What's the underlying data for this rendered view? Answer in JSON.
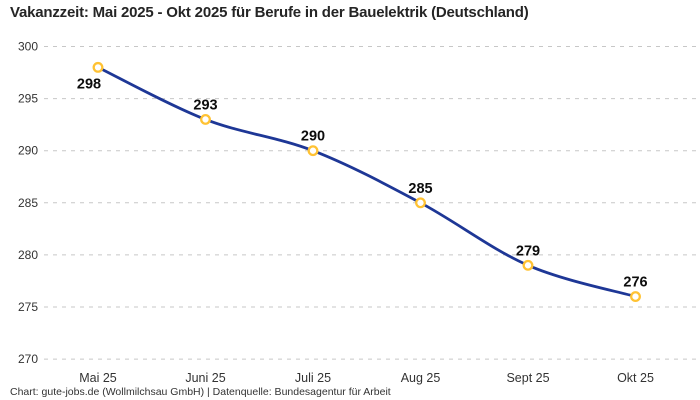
{
  "header": {
    "title": "Vakanzzeit: Mai 2025 - Okt 2025 für Berufe in der Bauelektrik (Deutschland)"
  },
  "footer": {
    "source_line": "Chart: gute-jobs.de (Wollmilchsau GmbH) | Datenquelle: Bundesagentur für Arbeit"
  },
  "colors": {
    "line": "#1e3796",
    "marker_ring": "#ffc233",
    "marker_fill": "#ffffff",
    "grid": "#c7c7c7",
    "axis_text": "#333333",
    "value_text": "#0d0d0d",
    "title_text": "#252525"
  },
  "chart_data": {
    "type": "line",
    "title": "Vakanzzeit: Mai 2025 - Okt 2025 für Berufe in der Bauelektrik (Deutschland)",
    "categories": [
      "Mai 25",
      "Juni 25",
      "Juli 25",
      "Aug 25",
      "Sept 25",
      "Okt 25"
    ],
    "values": [
      298,
      293,
      290,
      285,
      279,
      276
    ],
    "xlabel": "",
    "ylabel": "",
    "ylim": [
      270,
      300
    ],
    "yticks": [
      270,
      275,
      280,
      285,
      290,
      295,
      300
    ],
    "grid": "horizontal-dashed",
    "legend_position": "none",
    "data_labels_visible": true
  }
}
